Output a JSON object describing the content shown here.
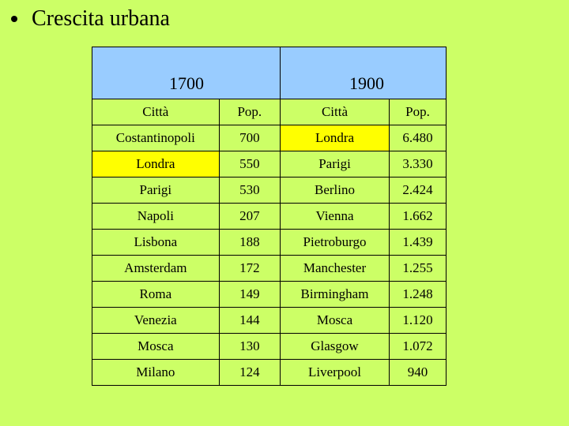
{
  "slide": {
    "title": "Crescita urbana"
  },
  "table": {
    "year_left": "1700",
    "year_right": "1900",
    "headers": [
      "Città",
      "Pop.",
      "Città",
      "Pop."
    ],
    "rows": [
      [
        "Costantinopoli",
        "700",
        "Londra",
        "6.480"
      ],
      [
        "Londra",
        "550",
        "Parigi",
        "3.330"
      ],
      [
        "Parigi",
        "530",
        "Berlino",
        "2.424"
      ],
      [
        "Napoli",
        "207",
        "Vienna",
        "1.662"
      ],
      [
        "Lisbona",
        "188",
        "Pietroburgo",
        "1.439"
      ],
      [
        "Amsterdam",
        "172",
        "Manchester",
        "1.255"
      ],
      [
        "Roma",
        "149",
        "Birmingham",
        "1.248"
      ],
      [
        "Venezia",
        "144",
        "Mosca",
        "1.120"
      ],
      [
        "Mosca",
        "130",
        "Glasgow",
        "1.072"
      ],
      [
        "Milano",
        "124",
        "Liverpool",
        "940"
      ]
    ]
  },
  "colors": {
    "background": "#ccff66",
    "year_header": "#99ccff",
    "highlight": "#ffff00"
  }
}
